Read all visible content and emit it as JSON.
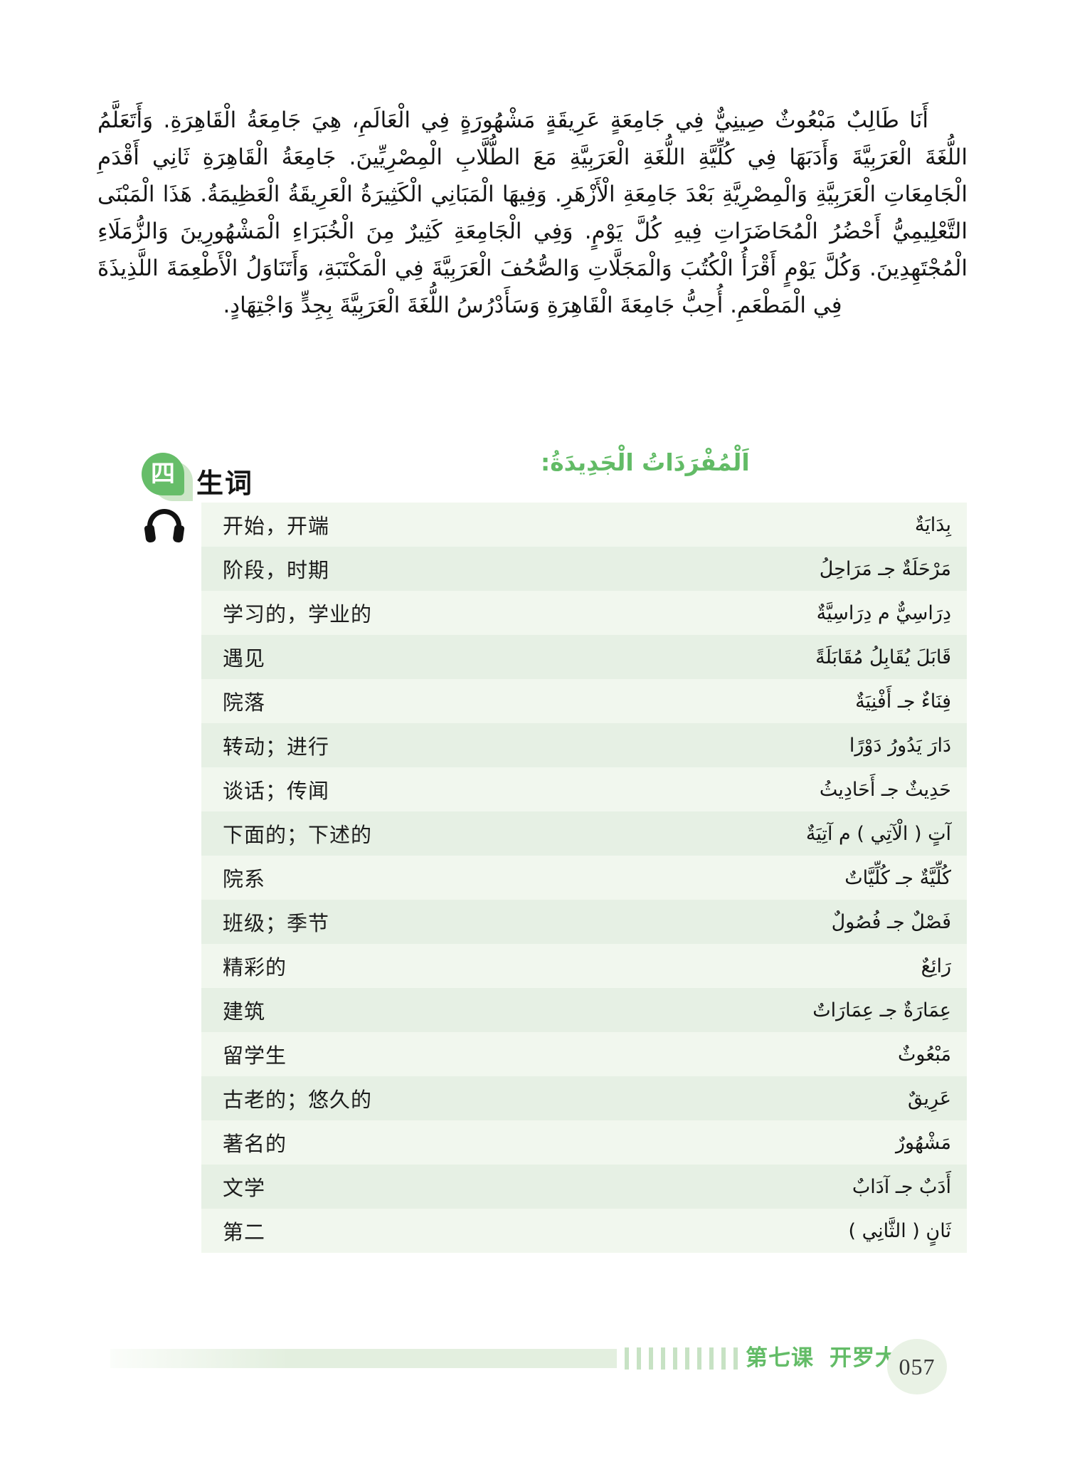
{
  "passage": {
    "arabic_text": "أَنَا طَالِبٌ مَبْعُوثٌ صِينِيٌّ فِي جَامِعَةٍ عَرِيقَةٍ مَشْهُورَةٍ فِي الْعَالَمِ، هِيَ جَامِعَةُ الْقَاهِرَةِ. وَأَتَعَلَّمُ اللُّغَةَ الْعَرَبِيَّةَ وَأَدَبَهَا فِي كُلِّيَّةِ اللُّغَةِ الْعَرَبِيَّةِ مَعَ الطُّلَّابِ الْمِصْرِيِّينَ. جَامِعَةُ الْقَاهِرَةِ ثَانِي أَقْدَمِ الْجَامِعَاتِ الْعَرَبِيَّةِ وَالْمِصْرِيَّةِ بَعْدَ جَامِعَةِ الْأَزْهَرِ. وَفِيهَا الْمَبَانِي الْكَثِيرَةُ الْعَرِيقَةُ الْعَظِيمَةُ. هَذَا الْمَبْنَى التَّعْلِيمِيُّ أَحْضُرُ الْمُحَاضَرَاتِ فِيهِ كُلَّ يَوْمٍ. وَفِي الْجَامِعَةِ كَثِيرٌ مِنَ الْخُبَرَاءِ الْمَشْهُورِينَ وَالزُّمَلَاءِ الْمُجْتَهِدِينَ. وَكُلَّ يَوْمٍ أَقْرَأُ الْكُتُبَ وَالْمَجَلَّاتِ وَالصُّحُفَ الْعَرَبِيَّةَ فِي الْمَكْتَبَةِ، وَأَتَنَاوَلُ الْأَطْعِمَةَ اللَّذِيذَةَ فِي الْمَطْعَمِ. أُحِبُّ جَامِعَةَ الْقَاهِرَةِ وَسَأَدْرُسُ اللُّغَةَ الْعَرَبِيَّةَ بِجِدٍّ وَاجْتِهَادٍ."
  },
  "section": {
    "badge_number": "四",
    "title_zh": "生词",
    "title_ar": "اَلْمُفْرَدَاتُ الْجَدِيدَةُ:",
    "audio_icon": "headphones-icon"
  },
  "vocab": {
    "rows": [
      {
        "zh": "开始，开端",
        "ar": "بِدَايَةٌ"
      },
      {
        "zh": "阶段，时期",
        "ar": "مَرْحَلَةٌ جـ مَرَاحِلُ"
      },
      {
        "zh": "学习的，学业的",
        "ar": "دِرَاسِيٌّ م دِرَاسِيَّةٌ"
      },
      {
        "zh": "遇见",
        "ar": "قَابَلَ يُقَابِلُ مُقَابَلَةً"
      },
      {
        "zh": "院落",
        "ar": "فِنَاءٌ جـ أَفْنِيَةٌ"
      },
      {
        "zh": "转动；进行",
        "ar": "دَارَ يَدُورُ دَوْرًا"
      },
      {
        "zh": "谈话；传闻",
        "ar": "حَدِيثٌ جـ أَحَادِيثُ"
      },
      {
        "zh": "下面的；下述的",
        "ar": "آتٍ ( الْآتِي ) م آتِيَةٌ"
      },
      {
        "zh": "院系",
        "ar": "كُلِّيَّةٌ جـ كُلِّيَّاتٌ"
      },
      {
        "zh": "班级；季节",
        "ar": "فَصْلٌ جـ فُصُولٌ"
      },
      {
        "zh": "精彩的",
        "ar": "رَائِعٌ"
      },
      {
        "zh": "建筑",
        "ar": "عِمَارَةٌ جـ عِمَارَاتٌ"
      },
      {
        "zh": "留学生",
        "ar": "مَبْعُوثٌ"
      },
      {
        "zh": "古老的；悠久的",
        "ar": "عَرِيقٌ"
      },
      {
        "zh": "著名的",
        "ar": "مَشْهُورٌ"
      },
      {
        "zh": "文学",
        "ar": "أَدَبٌ جـ آدَابٌ"
      },
      {
        "zh": "第二",
        "ar": "ثَانٍ ( الثَّانِي )"
      }
    ]
  },
  "footer": {
    "lesson": "第七课",
    "lesson_title": "开罗大学",
    "page_number": "057"
  },
  "colors": {
    "accent_green": "#62bb66",
    "badge_green": "#66bd69",
    "badge_shadow_green": "#cde6c8",
    "row_light": "#f1f7ee",
    "row_dark": "#e6f0e4",
    "footer_bar_green": "#e3efdf",
    "footer_stripe_green": "#c7e2c4",
    "page_circle_green": "#e9f2e5"
  }
}
